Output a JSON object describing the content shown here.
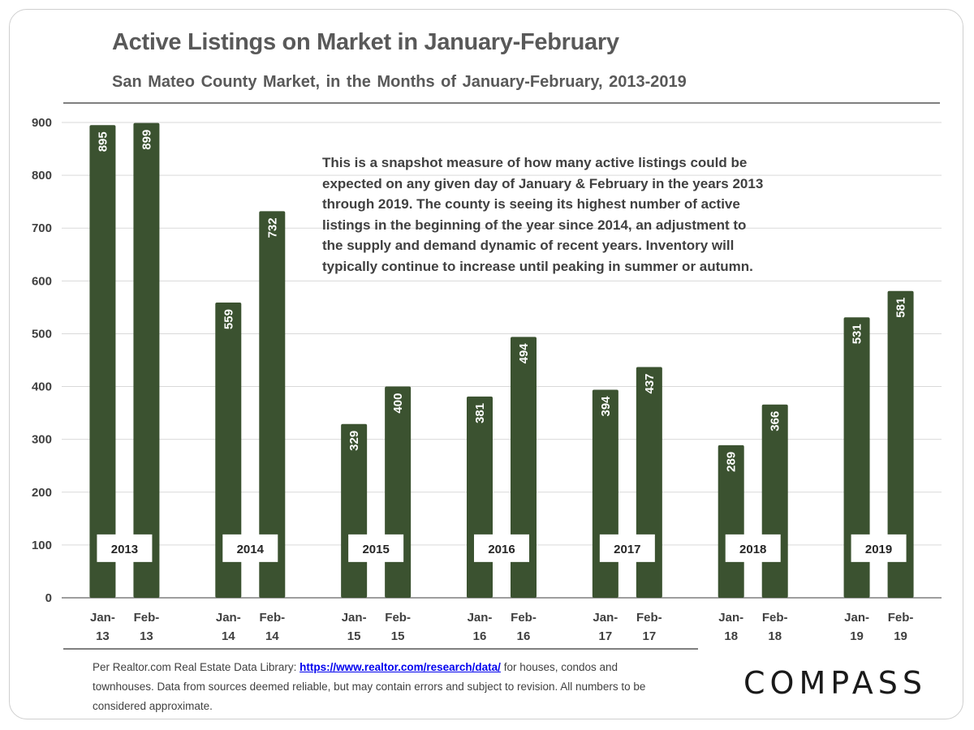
{
  "chart_data": {
    "type": "bar",
    "title": "Active Listings on Market in January-February",
    "subtitle": "San Mateo County Market, in the Months of January-February, 2013-2019",
    "categories": [
      "Jan-13",
      "Feb-13",
      "Jan-14",
      "Feb-14",
      "Jan-15",
      "Feb-15",
      "Jan-16",
      "Feb-16",
      "Jan-17",
      "Feb-17",
      "Jan-18",
      "Feb-18",
      "Jan-19",
      "Feb-19"
    ],
    "values": [
      895,
      899,
      559,
      732,
      329,
      400,
      381,
      494,
      394,
      437,
      289,
      366,
      531,
      581
    ],
    "groups": [
      {
        "year": "2013",
        "jan": 895,
        "feb": 899
      },
      {
        "year": "2014",
        "jan": 559,
        "feb": 732
      },
      {
        "year": "2015",
        "jan": 329,
        "feb": 400
      },
      {
        "year": "2016",
        "jan": 381,
        "feb": 494
      },
      {
        "year": "2017",
        "jan": 394,
        "feb": 437
      },
      {
        "year": "2018",
        "jan": 289,
        "feb": 366
      },
      {
        "year": "2019",
        "jan": 531,
        "feb": 581
      }
    ],
    "ylim": [
      0,
      900
    ],
    "yticks": [
      0,
      100,
      200,
      300,
      400,
      500,
      600,
      700,
      800,
      900
    ],
    "grid": true,
    "bar_color": "#3b5230",
    "xlabel": "",
    "ylabel": ""
  },
  "annotation": "This is a snapshot measure of how many active listings could be expected on any given day of January & February in the years 2013 through 2019. The county is seeing its highest number of active listings in the beginning of the year since 2014, an adjustment to the supply and demand dynamic of recent years. Inventory will typically continue to increase until peaking in summer or autumn.",
  "footer": {
    "prefix": "Per Realtor.com Real Estate Data Library: ",
    "link": "https://www.realtor.com/research/data/",
    "suffix": " for houses, condos and townhouses. Data from sources deemed reliable, but may contain errors and subject to revision. All numbers to be considered approximate."
  },
  "logo": "COMPASS"
}
